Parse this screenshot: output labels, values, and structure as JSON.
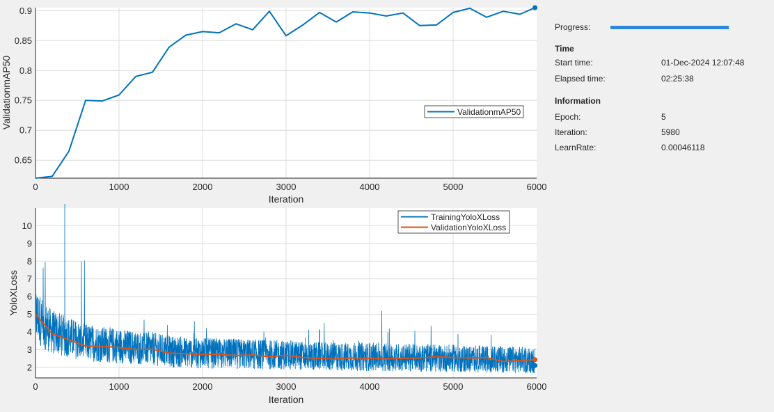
{
  "panel": {
    "progress_label": "Progress:",
    "progress_fraction": 0.997,
    "time_heading": "Time",
    "start_label": "Start time:",
    "start_value": "01-Dec-2024 12:07:48",
    "elapsed_label": "Elapsed time:",
    "elapsed_value": "02:25:38",
    "info_heading": "Information",
    "epoch_label": "Epoch:",
    "epoch_value": "5",
    "iteration_label": "Iteration:",
    "iteration_value": "5980",
    "lr_label": "LearnRate:",
    "lr_value": "0.00046118"
  },
  "colors": {
    "blue": "#0072bd",
    "orange": "#d95319",
    "grid": "#dcdcdc"
  },
  "chart_data": [
    {
      "type": "line",
      "xlabel": "Iteration",
      "ylabel": "ValidationmAP50",
      "xlim": [
        0,
        6000
      ],
      "ylim": [
        0.62,
        0.905
      ],
      "xticks": [
        0,
        1000,
        2000,
        3000,
        4000,
        5000,
        6000
      ],
      "yticks": [
        0.65,
        0.7,
        0.75,
        0.8,
        0.85,
        0.9
      ],
      "ytick_labels": [
        "0.65",
        "0.7",
        "0.75",
        "0.8",
        "0.85",
        "0.9"
      ],
      "grid": true,
      "legend_position": "middle-right",
      "series": [
        {
          "name": "ValidationmAP50",
          "color": "#0072bd",
          "points": [
            [
              0,
              0.62
            ],
            [
              200,
              0.623
            ],
            [
              400,
              0.665
            ],
            [
              600,
              0.75
            ],
            [
              800,
              0.749
            ],
            [
              1000,
              0.759
            ],
            [
              1200,
              0.79
            ],
            [
              1400,
              0.797
            ],
            [
              1600,
              0.839
            ],
            [
              1800,
              0.859
            ],
            [
              2000,
              0.865
            ],
            [
              2200,
              0.863
            ],
            [
              2400,
              0.878
            ],
            [
              2600,
              0.868
            ],
            [
              2800,
              0.899
            ],
            [
              3000,
              0.858
            ],
            [
              3200,
              0.876
            ],
            [
              3400,
              0.897
            ],
            [
              3600,
              0.881
            ],
            [
              3800,
              0.898
            ],
            [
              4000,
              0.896
            ],
            [
              4200,
              0.891
            ],
            [
              4400,
              0.896
            ],
            [
              4600,
              0.875
            ],
            [
              4800,
              0.876
            ],
            [
              5000,
              0.897
            ],
            [
              5200,
              0.904
            ],
            [
              5400,
              0.889
            ],
            [
              5600,
              0.899
            ],
            [
              5800,
              0.894
            ],
            [
              5980,
              0.905
            ]
          ]
        }
      ]
    },
    {
      "type": "line",
      "xlabel": "Iteration",
      "ylabel": "YoloXLoss",
      "xlim": [
        0,
        6000
      ],
      "ylim": [
        1.4,
        11.0
      ],
      "xticks": [
        0,
        1000,
        2000,
        3000,
        4000,
        5000,
        6000
      ],
      "yticks": [
        2,
        3,
        4,
        5,
        6,
        7,
        8,
        9,
        10
      ],
      "grid": true,
      "legend_position": "top-right",
      "series": [
        {
          "name": "TrainingYoloXLoss",
          "color": "#0072bd",
          "trend": [
            [
              0,
              5.0
            ],
            [
              100,
              4.4
            ],
            [
              200,
              4.0
            ],
            [
              400,
              3.7
            ],
            [
              600,
              3.4
            ],
            [
              800,
              3.3
            ],
            [
              1000,
              3.2
            ],
            [
              1200,
              3.1
            ],
            [
              1400,
              3.05
            ],
            [
              1600,
              2.9
            ],
            [
              2000,
              2.8
            ],
            [
              2500,
              2.75
            ],
            [
              3000,
              2.7
            ],
            [
              3500,
              2.6
            ],
            [
              4000,
              2.6
            ],
            [
              4500,
              2.55
            ],
            [
              5000,
              2.5
            ],
            [
              5500,
              2.45
            ],
            [
              5980,
              2.4
            ]
          ],
          "last_point": [
            5980,
            2.1
          ]
        },
        {
          "name": "ValidationYoloXLoss",
          "color": "#d95319",
          "points": [
            [
              0,
              5.0
            ],
            [
              200,
              3.9
            ],
            [
              400,
              3.55
            ],
            [
              600,
              3.2
            ],
            [
              800,
              3.18
            ],
            [
              1000,
              3.12
            ],
            [
              1200,
              3.0
            ],
            [
              1400,
              3.02
            ],
            [
              1600,
              2.8
            ],
            [
              1800,
              2.77
            ],
            [
              2000,
              2.72
            ],
            [
              2200,
              2.73
            ],
            [
              2400,
              2.67
            ],
            [
              2600,
              2.7
            ],
            [
              2800,
              2.6
            ],
            [
              3000,
              2.68
            ],
            [
              3200,
              2.55
            ],
            [
              3400,
              2.5
            ],
            [
              3600,
              2.47
            ],
            [
              3800,
              2.52
            ],
            [
              4000,
              2.5
            ],
            [
              4200,
              2.48
            ],
            [
              4400,
              2.5
            ],
            [
              4600,
              2.52
            ],
            [
              4800,
              2.6
            ],
            [
              5000,
              2.55
            ],
            [
              5200,
              2.52
            ],
            [
              5400,
              2.55
            ],
            [
              5600,
              2.33
            ],
            [
              5800,
              2.38
            ],
            [
              5980,
              2.43
            ]
          ]
        }
      ]
    }
  ]
}
